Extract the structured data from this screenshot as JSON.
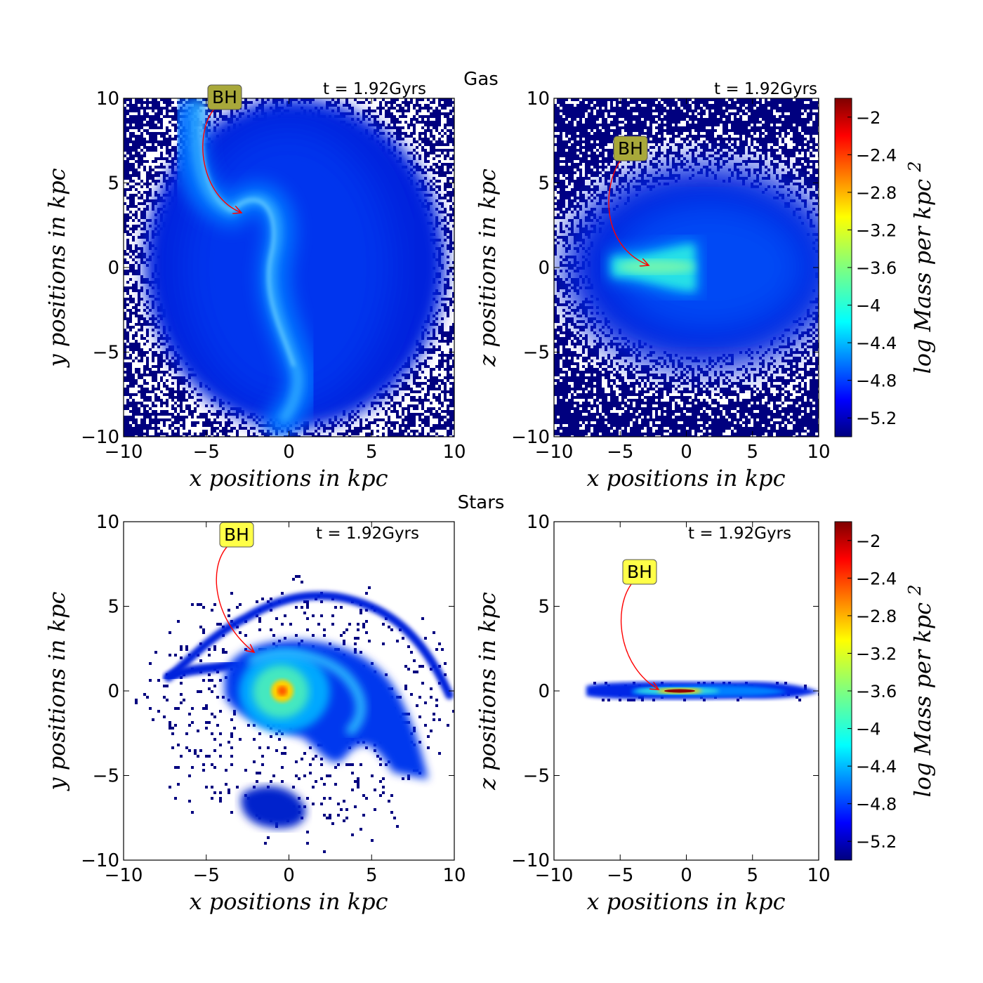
{
  "figure": {
    "gas_title": "Gas",
    "stars_title": "Stars",
    "colorbar_label": "log Mass per kpc",
    "colorbar_label_superscript": "2",
    "colormap": [
      "#00007f",
      "#0000ff",
      "#007fff",
      "#00ffff",
      "#7fff7f",
      "#ffff00",
      "#ff7f00",
      "#ff0000",
      "#7f0000"
    ]
  },
  "chart_data": [
    {
      "id": "gas-xy",
      "type": "heatmap",
      "component": "Gas",
      "projection": "x-y",
      "time_label": "t = 1.92Gyrs",
      "xlabel": "x positions in kpc",
      "ylabel": "y positions in kpc",
      "xlim": [
        -10,
        10
      ],
      "ylim": [
        -10,
        10
      ],
      "xticks": [
        -10,
        -5,
        0,
        5,
        10
      ],
      "yticks": [
        -10,
        -5,
        0,
        5,
        10
      ],
      "bh": {
        "label": "BH",
        "x": -2.8,
        "y": 3.0
      },
      "features": "extended gaseous halo with a curved tidal arm from (-5,10) down through (-2,3) to (0,-7); noisy low-density edges"
    },
    {
      "id": "gas-xz",
      "type": "heatmap",
      "component": "Gas",
      "projection": "x-z",
      "time_label": "t = 1.92Gyrs",
      "xlabel": "x positions in kpc",
      "ylabel": "z positions in kpc",
      "xlim": [
        -10,
        10
      ],
      "ylim": [
        -10,
        10
      ],
      "xticks": [
        -10,
        -5,
        0,
        5,
        10
      ],
      "yticks": [
        -10,
        -5,
        0,
        5,
        10
      ],
      "bh": {
        "label": "BH",
        "x": -2.8,
        "y": 0.0
      },
      "features": "thick gas slab from x=-5.5 to x=1 centred on z=0, diffuse halo extending to the right"
    },
    {
      "id": "stars-xy",
      "type": "heatmap",
      "component": "Stars",
      "projection": "x-y",
      "time_label": "t = 1.92Gyrs",
      "xlabel": "x positions in kpc",
      "ylabel": "y positions in kpc",
      "xlim": [
        -10,
        10
      ],
      "ylim": [
        -10,
        10
      ],
      "xticks": [
        -10,
        -5,
        0,
        5,
        10
      ],
      "yticks": [
        -10,
        -5,
        0,
        5,
        10
      ],
      "bh": {
        "label": "BH",
        "x": -2.0,
        "y": 2.2
      },
      "features": "spiral galaxy with bright core near (-0.4,0), tidal arc reaching y=5.5, debris clump near (-1.5,-7)"
    },
    {
      "id": "stars-xz",
      "type": "heatmap",
      "component": "Stars",
      "projection": "x-z",
      "time_label": "t = 1.92Gyrs",
      "xlabel": "x positions in kpc",
      "ylabel": "z positions in kpc",
      "xlim": [
        -10,
        10
      ],
      "ylim": [
        -10,
        10
      ],
      "xticks": [
        -10,
        -5,
        0,
        5,
        10
      ],
      "yticks": [
        -10,
        -5,
        0,
        5,
        10
      ],
      "bh": {
        "label": "BH",
        "x": -2.0,
        "y": 0.0
      },
      "features": "thin edge-on stellar disc from x=-7 to x=10 at z=0 with dense core at x=-0.5"
    }
  ],
  "colorbars": [
    {
      "id": "cbar-gas",
      "range": [
        -5.4,
        -1.8
      ],
      "ticks": [
        -2.0,
        -2.4,
        -2.8,
        -3.2,
        -3.6,
        -4.0,
        -4.4,
        -4.8,
        -5.2
      ]
    },
    {
      "id": "cbar-stars",
      "range": [
        -5.4,
        -1.8
      ],
      "ticks": [
        -2.0,
        -2.4,
        -2.8,
        -3.2,
        -3.6,
        -4.0,
        -4.4,
        -4.8,
        -5.2
      ]
    }
  ]
}
